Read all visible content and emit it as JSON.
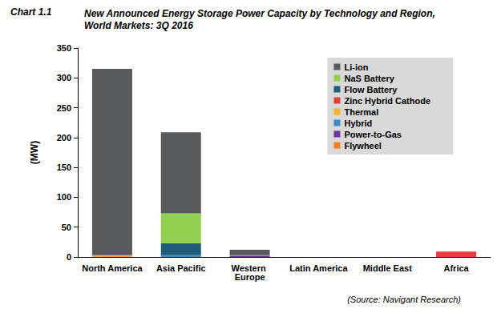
{
  "chart_data": {
    "type": "bar",
    "chart_number": "Chart 1.1",
    "title": "New Announced Energy Storage Power Capacity by Technology and Region, World Markets: 3Q 2016",
    "source": "(Source: Navigant Research)",
    "y_label": "(MW)",
    "categories": [
      "North America",
      "Asia Pacific",
      "Western Europe",
      "Latin America",
      "Middle East",
      "Africa"
    ],
    "series": [
      {
        "name": "Li-ion",
        "color": "#58595b",
        "values": [
          312,
          136,
          9,
          0,
          0,
          0
        ]
      },
      {
        "name": "NaS Battery",
        "color": "#92d050",
        "values": [
          0,
          50,
          0,
          0,
          0,
          0
        ]
      },
      {
        "name": "Flow Battery",
        "color": "#1f5c78",
        "values": [
          0,
          20,
          0,
          0,
          0,
          0
        ]
      },
      {
        "name": "Zinc Hybrid Cathode",
        "color": "#e0413a",
        "values": [
          0,
          0,
          0,
          0,
          0,
          9
        ]
      },
      {
        "name": "Thermal",
        "color": "#f5b324",
        "values": [
          2,
          0,
          0,
          0,
          0,
          0
        ]
      },
      {
        "name": "Hybrid",
        "color": "#3a8fc8",
        "values": [
          0,
          3,
          1,
          0,
          0,
          0
        ]
      },
      {
        "name": "Power-to-Gas",
        "color": "#7030a0",
        "values": [
          0,
          0,
          2,
          0,
          0,
          0
        ]
      },
      {
        "name": "Flywheel",
        "color": "#f47b20",
        "values": [
          1,
          0,
          0,
          0,
          0,
          0
        ]
      }
    ],
    "stacked": true,
    "ylim": [
      0,
      350
    ],
    "yticks": [
      0,
      50,
      100,
      150,
      200,
      250,
      300,
      350
    ],
    "grid": false,
    "legend": "top-right"
  }
}
